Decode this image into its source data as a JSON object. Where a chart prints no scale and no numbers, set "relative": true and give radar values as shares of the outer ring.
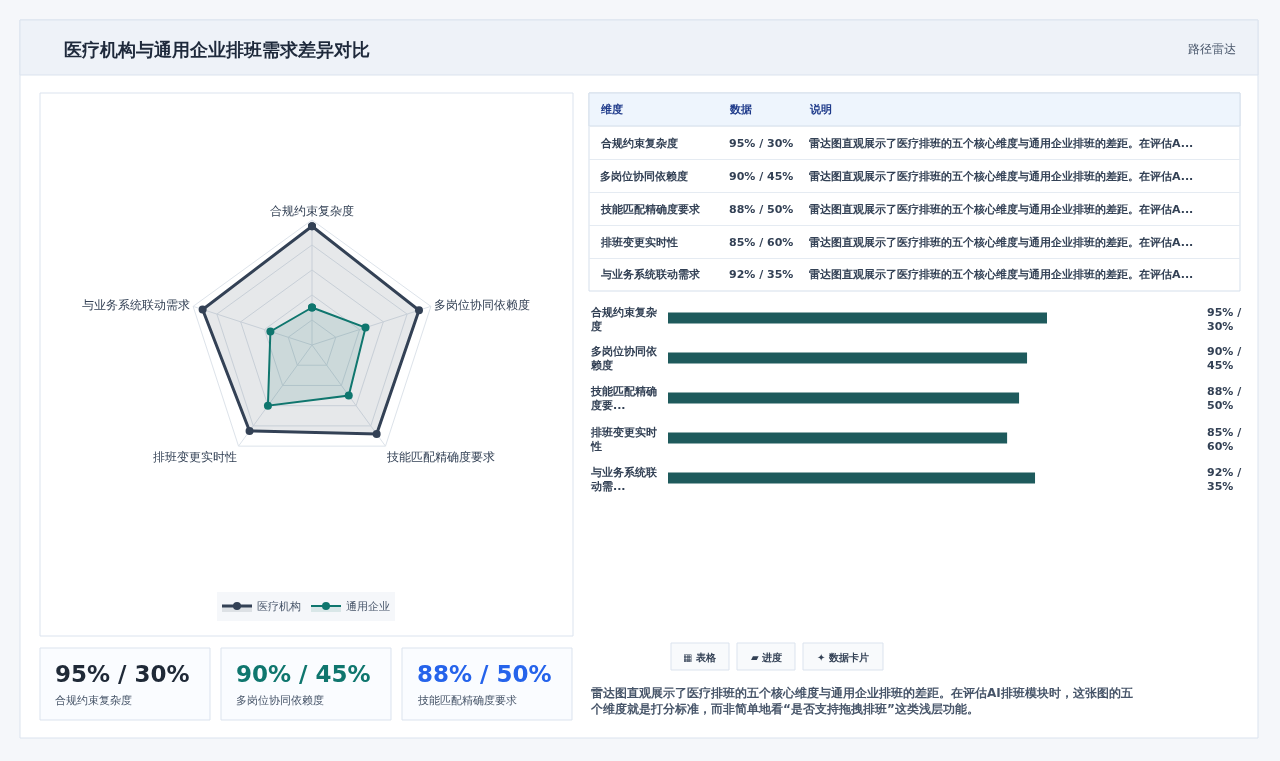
{
  "chart_data": [
    {
      "type": "other",
      "annotations": [
        "医疗机构与通用企业排班需求差异对比",
        "路径雷达"
      ]
    },
    {
      "type": "radar",
      "relative": true,
      "categories": [
        "合规约束复杂度",
        "多岗位协同依赖度",
        "技能匹配精确度要求",
        "排班变更实时性",
        "与业务系统联动需求"
      ],
      "series": [
        {
          "name": "医疗机构",
          "color": "#334155",
          "values": [
            0.95,
            0.9,
            0.88,
            0.85,
            0.92
          ]
        },
        {
          "name": "通用企业",
          "color": "#0f766e",
          "values": [
            0.3,
            0.45,
            0.5,
            0.6,
            0.35
          ]
        }
      ],
      "marker": "circle",
      "legend": "bottom",
      "grid": true
    },
    {
      "type": "other",
      "annotations": [
        "维度",
        "数据",
        "说明",
        "合规约束复杂度",
        "95% / 30%",
        "雷达图直观展示了医疗排班的五个核心维度与通用企业排班的差距。在评估A...",
        "多岗位协同依赖度",
        "90% / 45%",
        "雷达图直观展示了医疗排班的五个核心维度与通用企业排班的差距。在评估A...",
        "技能匹配精确度要求",
        "88% / 50%",
        "雷达图直观展示了医疗排班的五个核心维度与通用企业排班的差距。在评估A...",
        "排班变更实时性",
        "85% / 60%",
        "雷达图直观展示了医疗排班的五个核心维度与通用企业排班的差距。在评估A...",
        "与业务系统联动需求",
        "92% / 35%",
        "雷达图直观展示了医疗排班的五个核心维度与通用企业排班的差距。在评估A..."
      ]
    },
    {
      "type": "bar",
      "orientation": "horizontal",
      "categories": [
        "合规约束复杂度",
        "多岗位协同依赖度",
        "技能匹配精确度要...",
        "排班变更实时性",
        "与业务系统联动需..."
      ],
      "values": [
        95,
        90,
        88,
        85,
        92
      ],
      "color": "#1e5a5c",
      "value_labels": [
        "95% / 30%",
        "90% / 45%",
        "88% / 50%",
        "85% / 60%",
        "92% / 35%"
      ]
    },
    {
      "type": "other",
      "annotations": [
        "95% / 30%",
        "合规约束复杂度",
        "90% / 45%",
        "多岗位协同依赖度",
        "88% / 50%",
        "技能匹配精确度要求"
      ],
      "colors": [
        "#1f2937",
        "#0f766e",
        "#2563eb"
      ]
    },
    {
      "type": "other",
      "annotations": [
        "▦ 表格",
        "▰ 进度",
        "✦ 数据卡片",
        "雷达图直观展示了医疗排班的五个核心维度与通用企业排班的差距。在评估AI排班模块时，这张图的五个维度就是打分标准，而非简单地看“是否支持拖拽排班”这类浅层功能。"
      ]
    }
  ]
}
